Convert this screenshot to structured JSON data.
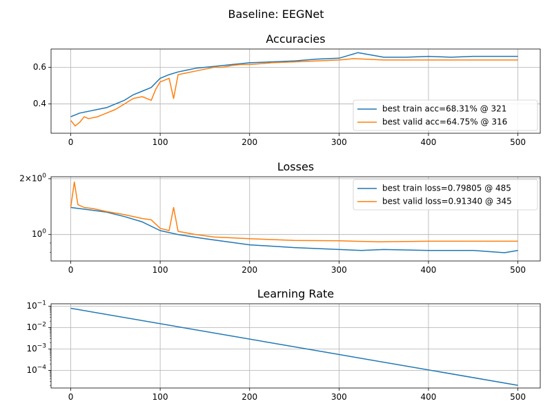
{
  "figure": {
    "suptitle": "Baseline: EEGNet"
  },
  "colors": {
    "train": "#1f77b4",
    "valid": "#ff7f0e",
    "grid": "#b0b0b0",
    "axis": "#000000"
  },
  "chart_data": [
    {
      "type": "line",
      "title": "Accuracies",
      "xlabel": "",
      "ylabel": "",
      "xlim": [
        -22,
        525
      ],
      "ylim": [
        0.24,
        0.7
      ],
      "xticks": [
        0,
        100,
        200,
        300,
        400,
        500
      ],
      "yticks": [
        0.4,
        0.6
      ],
      "ytick_labels": [
        "0.4",
        "0.6"
      ],
      "grid": true,
      "legend_position": "lower-right",
      "series": [
        {
          "name": "best train acc=68.31% @ 321",
          "key": "train",
          "x": [
            0,
            10,
            20,
            30,
            40,
            50,
            60,
            70,
            80,
            90,
            100,
            110,
            120,
            130,
            140,
            150,
            160,
            170,
            180,
            190,
            200,
            225,
            250,
            275,
            300,
            321,
            350,
            375,
            400,
            425,
            450,
            475,
            500
          ],
          "y": [
            0.33,
            0.35,
            0.36,
            0.37,
            0.38,
            0.4,
            0.42,
            0.45,
            0.47,
            0.49,
            0.54,
            0.56,
            0.575,
            0.585,
            0.595,
            0.6,
            0.605,
            0.61,
            0.615,
            0.62,
            0.625,
            0.63,
            0.635,
            0.645,
            0.65,
            0.68,
            0.655,
            0.655,
            0.66,
            0.655,
            0.66,
            0.66,
            0.66
          ]
        },
        {
          "name": "best valid acc=64.75% @ 316",
          "key": "valid",
          "x": [
            0,
            5,
            10,
            15,
            20,
            30,
            40,
            50,
            60,
            70,
            80,
            90,
            95,
            100,
            110,
            115,
            120,
            130,
            140,
            150,
            160,
            170,
            180,
            190,
            200,
            225,
            250,
            275,
            300,
            316,
            350,
            375,
            400,
            425,
            450,
            475,
            500
          ],
          "y": [
            0.31,
            0.28,
            0.3,
            0.33,
            0.32,
            0.33,
            0.35,
            0.37,
            0.4,
            0.43,
            0.44,
            0.42,
            0.48,
            0.52,
            0.54,
            0.43,
            0.56,
            0.57,
            0.58,
            0.59,
            0.6,
            0.6,
            0.61,
            0.615,
            0.615,
            0.625,
            0.63,
            0.635,
            0.64,
            0.6475,
            0.64,
            0.64,
            0.64,
            0.64,
            0.64,
            0.64,
            0.64
          ]
        }
      ]
    },
    {
      "type": "line",
      "title": "Losses",
      "xlabel": "",
      "ylabel": "",
      "yscale": "log",
      "xlim": [
        -22,
        525
      ],
      "ylim": [
        0.72,
        2.05
      ],
      "xticks": [
        0,
        100,
        200,
        300,
        400,
        500
      ],
      "yticks": [
        1,
        2
      ],
      "ytick_labels": [
        "10^0",
        "2×10^0"
      ],
      "grid": true,
      "legend_position": "upper-right",
      "series": [
        {
          "name": "best train loss=0.79805 @ 485",
          "key": "train",
          "x": [
            0,
            20,
            40,
            60,
            80,
            100,
            120,
            150,
            200,
            250,
            300,
            325,
            350,
            400,
            450,
            485,
            500
          ],
          "y": [
            1.4,
            1.36,
            1.32,
            1.25,
            1.17,
            1.05,
            1.0,
            0.95,
            0.88,
            0.85,
            0.83,
            0.82,
            0.83,
            0.82,
            0.82,
            0.79805,
            0.82
          ]
        },
        {
          "name": "best valid loss=0.91340 @ 345",
          "key": "valid",
          "x": [
            0,
            4,
            8,
            15,
            25,
            40,
            60,
            80,
            90,
            100,
            110,
            115,
            120,
            140,
            160,
            180,
            200,
            250,
            300,
            345,
            400,
            450,
            500
          ],
          "y": [
            1.4,
            1.92,
            1.45,
            1.4,
            1.38,
            1.33,
            1.28,
            1.22,
            1.2,
            1.08,
            1.05,
            1.4,
            1.04,
            1.0,
            0.97,
            0.96,
            0.95,
            0.93,
            0.925,
            0.9134,
            0.92,
            0.92,
            0.92
          ]
        }
      ]
    },
    {
      "type": "line",
      "title": "Learning Rate",
      "xlabel": "",
      "ylabel": "",
      "yscale": "log",
      "xlim": [
        -22,
        525
      ],
      "ylim": [
        1.5e-05,
        0.13
      ],
      "xticks": [
        0,
        100,
        200,
        300,
        400,
        500
      ],
      "yticks": [
        0.1,
        0.01,
        0.001,
        0.0001
      ],
      "ytick_labels": [
        "10^-1",
        "10^-2",
        "10^-3",
        "10^-4"
      ],
      "grid": true,
      "series": [
        {
          "key": "train",
          "x": [
            0,
            500
          ],
          "y": [
            0.08,
            2e-05
          ]
        }
      ]
    }
  ]
}
